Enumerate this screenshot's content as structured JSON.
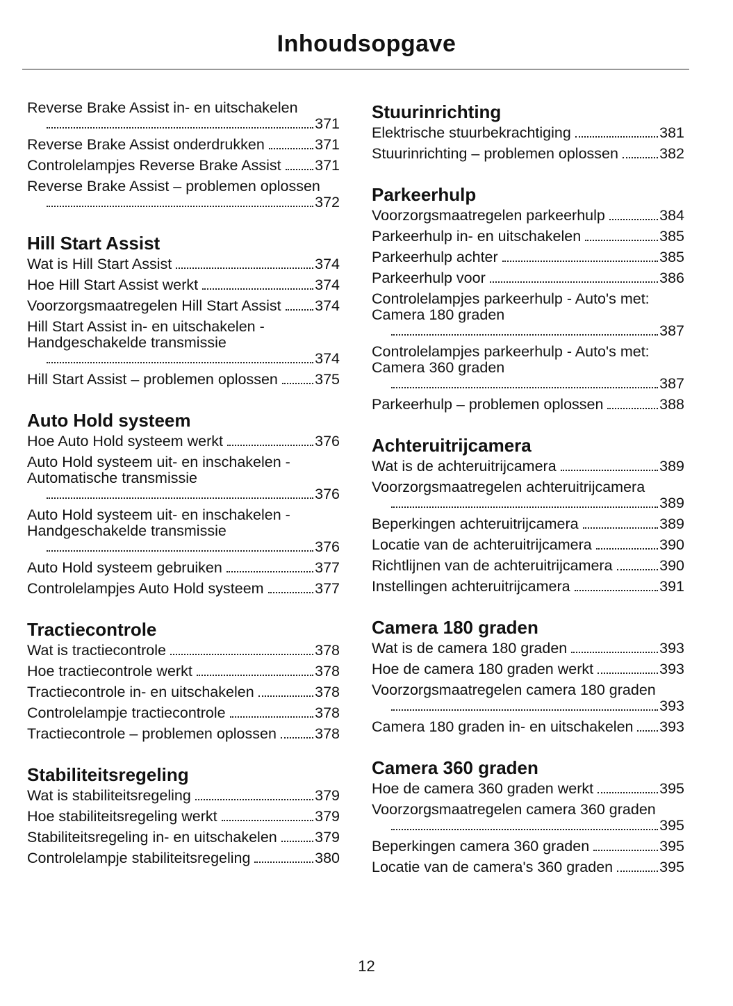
{
  "header": {
    "title": "Inhoudsopgave"
  },
  "columns": [
    {
      "sections": [
        {
          "entries": [
            {
              "text": "Reverse Brake Assist in- en uitschakelen",
              "page": "371"
            },
            {
              "text": "Reverse Brake Assist onderdrukken",
              "page": "371"
            },
            {
              "text": "Controlelampjes Reverse Brake Assist",
              "page": "371"
            },
            {
              "text": "Reverse Brake Assist – problemen oplossen",
              "page": "372"
            }
          ]
        },
        {
          "heading": "Hill Start Assist",
          "entries": [
            {
              "text": "Wat is Hill Start Assist",
              "page": "374"
            },
            {
              "text": "Hoe Hill Start Assist werkt",
              "page": "374"
            },
            {
              "text": "Voorzorgsmaatregelen Hill Start Assist",
              "page": "374"
            },
            {
              "text": "Hill Start Assist in- en uitschakelen - Handgeschakelde transmissie",
              "page": "374"
            },
            {
              "text": "Hill Start Assist – problemen oplossen",
              "page": "375"
            }
          ]
        },
        {
          "heading": "Auto Hold systeem",
          "entries": [
            {
              "text": "Hoe Auto Hold systeem werkt",
              "page": "376"
            },
            {
              "text": "Auto Hold systeem uit- en inschakelen - Automatische transmissie",
              "page": "376"
            },
            {
              "text": "Auto Hold systeem uit- en inschakelen - Handgeschakelde transmissie",
              "page": "376"
            },
            {
              "text": "Auto Hold systeem gebruiken",
              "page": "377"
            },
            {
              "text": "Controlelampjes Auto Hold systeem",
              "page": "377"
            }
          ]
        },
        {
          "heading": "Tractiecontrole",
          "entries": [
            {
              "text": "Wat is tractiecontrole",
              "page": "378"
            },
            {
              "text": "Hoe tractiecontrole werkt",
              "page": "378"
            },
            {
              "text": "Tractiecontrole in- en uitschakelen",
              "page": "378"
            },
            {
              "text": "Controlelampje tractiecontrole",
              "page": "378"
            },
            {
              "text": "Tractiecontrole – problemen oplossen",
              "page": "378"
            }
          ]
        },
        {
          "heading": "Stabiliteitsregeling",
          "entries": [
            {
              "text": "Wat is stabiliteitsregeling",
              "page": "379"
            },
            {
              "text": "Hoe stabiliteitsregeling werkt",
              "page": "379"
            },
            {
              "text": "Stabiliteitsregeling in- en uitschakelen",
              "page": "379"
            },
            {
              "text": "Controlelampje stabiliteitsregeling",
              "page": "380"
            }
          ]
        }
      ]
    },
    {
      "sections": [
        {
          "heading": "Stuurinrichting",
          "entries": [
            {
              "text": "Elektrische stuurbekrachtiging",
              "page": "381"
            },
            {
              "text": "Stuurinrichting – problemen oplossen",
              "page": "382"
            }
          ]
        },
        {
          "heading": "Parkeerhulp",
          "entries": [
            {
              "text": "Voorzorgsmaatregelen parkeerhulp",
              "page": "384"
            },
            {
              "text": "Parkeerhulp in- en uitschakelen",
              "page": "385"
            },
            {
              "text": "Parkeerhulp achter",
              "page": "385"
            },
            {
              "text": "Parkeerhulp voor",
              "page": "386"
            },
            {
              "text": "Controlelampjes parkeerhulp - Auto's met: Camera 180 graden",
              "page": "387"
            },
            {
              "text": "Controlelampjes parkeerhulp - Auto's met: Camera 360 graden",
              "page": "387"
            },
            {
              "text": "Parkeerhulp – problemen oplossen",
              "page": "388"
            }
          ]
        },
        {
          "heading": "Achteruitrijcamera",
          "entries": [
            {
              "text": "Wat is de achteruitrijcamera",
              "page": "389"
            },
            {
              "text": "Voorzorgsmaatregelen achteruitrijcamera",
              "page": "389"
            },
            {
              "text": "Beperkingen achteruitrijcamera",
              "page": "389"
            },
            {
              "text": "Locatie van de achteruitrijcamera",
              "page": "390"
            },
            {
              "text": "Richtlijnen van de achteruitrijcamera",
              "page": "390"
            },
            {
              "text": "Instellingen achteruitrijcamera",
              "page": "391"
            }
          ]
        },
        {
          "heading": "Camera 180 graden",
          "entries": [
            {
              "text": "Wat is de camera 180 graden",
              "page": "393"
            },
            {
              "text": "Hoe de camera 180 graden werkt",
              "page": "393"
            },
            {
              "text": "Voorzorgsmaatregelen camera 180 graden",
              "page": "393"
            },
            {
              "text": "Camera 180 graden in- en uitschakelen",
              "page": "393"
            }
          ]
        },
        {
          "heading": "Camera 360 graden",
          "entries": [
            {
              "text": "Hoe de camera 360 graden werkt",
              "page": "395"
            },
            {
              "text": "Voorzorgsmaatregelen camera 360 graden",
              "page": "395"
            },
            {
              "text": "Beperkingen camera 360 graden",
              "page": "395"
            },
            {
              "text": "Locatie van de camera's 360 graden",
              "page": "395"
            }
          ]
        }
      ]
    }
  ],
  "footer": {
    "page_number": "12"
  }
}
